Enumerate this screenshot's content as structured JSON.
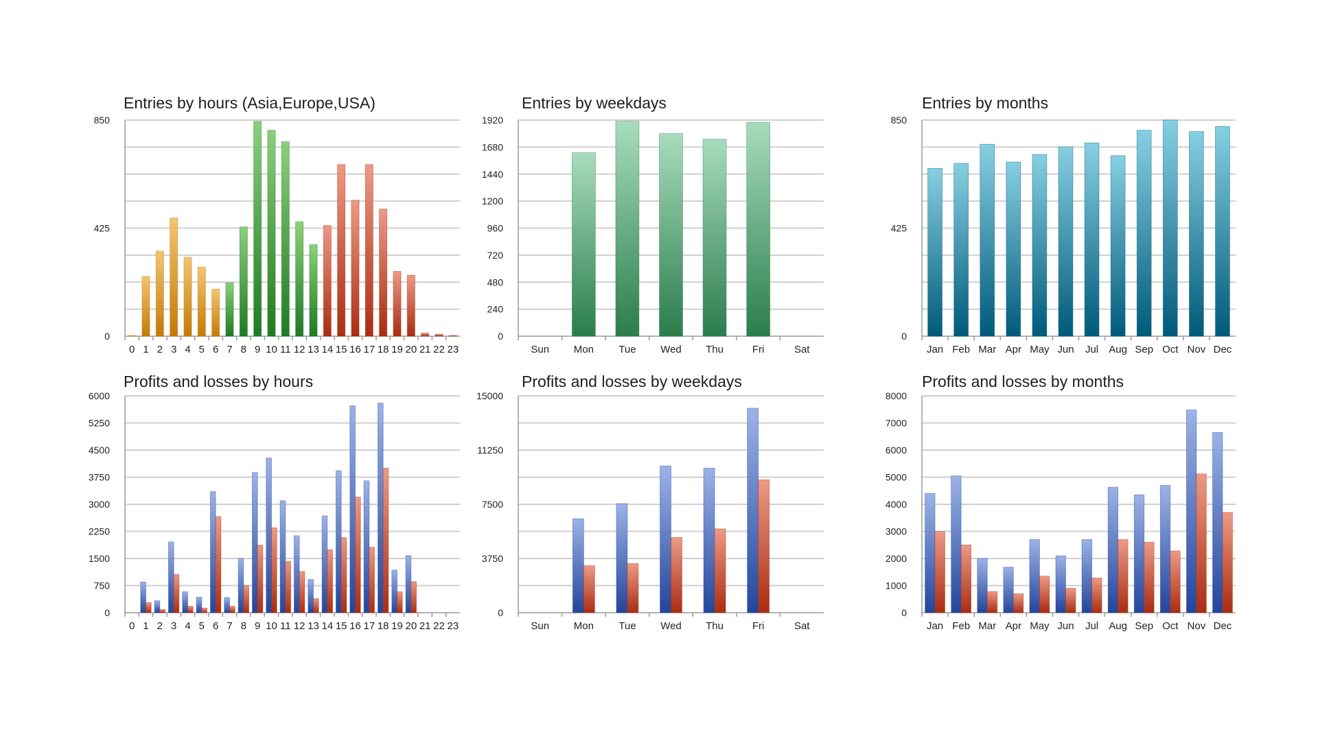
{
  "chart_data": [
    {
      "id": "entries-hours",
      "type": "bar",
      "title": "Entries by hours (Asia,Europe,USA)",
      "categories": [
        "0",
        "1",
        "2",
        "3",
        "4",
        "5",
        "6",
        "7",
        "8",
        "9",
        "10",
        "11",
        "12",
        "13",
        "14",
        "15",
        "16",
        "17",
        "18",
        "19",
        "20",
        "21",
        "22",
        "23"
      ],
      "values": [
        3,
        235,
        335,
        465,
        310,
        272,
        185,
        210,
        430,
        845,
        810,
        765,
        450,
        360,
        435,
        675,
        535,
        675,
        500,
        255,
        240,
        12,
        8,
        3
      ],
      "ylim": [
        0,
        850
      ],
      "yticks": [
        0,
        425,
        850
      ],
      "gridlines": 8,
      "color_groups": [
        "orange",
        "orange",
        "orange",
        "orange",
        "orange",
        "orange",
        "orange",
        "green",
        "green",
        "green",
        "green",
        "green",
        "green",
        "green",
        "red",
        "red",
        "red",
        "red",
        "red",
        "red",
        "red",
        "red",
        "red",
        "red"
      ]
    },
    {
      "id": "entries-weekdays",
      "type": "bar",
      "title": "Entries by weekdays",
      "categories": [
        "Sun",
        "Mon",
        "Tue",
        "Wed",
        "Thu",
        "Fri",
        "Sat"
      ],
      "values": [
        0,
        1630,
        1910,
        1800,
        1750,
        1900,
        0
      ],
      "ylim": [
        0,
        1920
      ],
      "yticks": [
        0,
        240,
        480,
        720,
        960,
        1200,
        1440,
        1680,
        1920
      ],
      "gridlines": 8,
      "color_groups": [
        "mint",
        "mint",
        "mint",
        "mint",
        "mint",
        "mint",
        "mint"
      ]
    },
    {
      "id": "entries-months",
      "type": "bar",
      "title": "Entries by months",
      "categories": [
        "Jan",
        "Feb",
        "Mar",
        "Apr",
        "May",
        "Jun",
        "Jul",
        "Aug",
        "Sep",
        "Oct",
        "Nov",
        "Dec"
      ],
      "values": [
        660,
        680,
        755,
        685,
        715,
        745,
        760,
        710,
        810,
        850,
        805,
        825
      ],
      "ylim": [
        0,
        850
      ],
      "yticks": [
        0,
        425,
        850
      ],
      "gridlines": 8,
      "color_groups": [
        "teal",
        "teal",
        "teal",
        "teal",
        "teal",
        "teal",
        "teal",
        "teal",
        "teal",
        "teal",
        "teal",
        "teal"
      ]
    },
    {
      "id": "pl-hours",
      "type": "bar",
      "title": "Profits and losses by hours",
      "categories": [
        "0",
        "1",
        "2",
        "3",
        "4",
        "5",
        "6",
        "7",
        "8",
        "9",
        "10",
        "11",
        "12",
        "13",
        "14",
        "15",
        "16",
        "17",
        "18",
        "19",
        "20",
        "21",
        "22",
        "23"
      ],
      "series": [
        {
          "name": "Profits",
          "color": "blue",
          "values": [
            0,
            850,
            330,
            1960,
            580,
            430,
            3350,
            420,
            1500,
            3880,
            4280,
            3100,
            2130,
            920,
            2680,
            3930,
            5730,
            3650,
            5800,
            1180,
            1580,
            0,
            0,
            0
          ]
        },
        {
          "name": "Losses",
          "color": "red",
          "values": [
            0,
            280,
            90,
            1060,
            180,
            130,
            2660,
            180,
            750,
            1870,
            2350,
            1420,
            1140,
            390,
            1740,
            2080,
            3200,
            1810,
            4000,
            580,
            860,
            0,
            0,
            0
          ]
        }
      ],
      "ylim": [
        0,
        6000
      ],
      "yticks": [
        0,
        750,
        1500,
        2250,
        3000,
        3750,
        4500,
        5250,
        6000
      ],
      "gridlines": 8
    },
    {
      "id": "pl-weekdays",
      "type": "bar",
      "title": "Profits and losses by weekdays",
      "categories": [
        "Sun",
        "Mon",
        "Tue",
        "Wed",
        "Thu",
        "Fri",
        "Sat"
      ],
      "series": [
        {
          "name": "Profits",
          "color": "blue",
          "values": [
            0,
            6500,
            7550,
            10150,
            10000,
            14150,
            0
          ]
        },
        {
          "name": "Losses",
          "color": "red",
          "values": [
            0,
            3250,
            3400,
            5200,
            5800,
            9200,
            0
          ]
        }
      ],
      "ylim": [
        0,
        15000
      ],
      "yticks": [
        0,
        3750,
        7500,
        11250,
        15000
      ],
      "gridlines": 8
    },
    {
      "id": "pl-months",
      "type": "bar",
      "title": "Profits and losses by months",
      "categories": [
        "Jan",
        "Feb",
        "Mar",
        "Apr",
        "May",
        "Jun",
        "Jul",
        "Aug",
        "Sep",
        "Oct",
        "Nov",
        "Dec"
      ],
      "series": [
        {
          "name": "Profits",
          "color": "blue",
          "values": [
            4400,
            5050,
            2000,
            1680,
            2700,
            2100,
            2700,
            4630,
            4350,
            4700,
            7480,
            6650
          ]
        },
        {
          "name": "Losses",
          "color": "red",
          "values": [
            3000,
            2500,
            780,
            700,
            1350,
            900,
            1280,
            2700,
            2600,
            2280,
            5120,
            3700
          ]
        }
      ],
      "ylim": [
        0,
        8000
      ],
      "yticks": [
        0,
        1000,
        2000,
        3000,
        4000,
        5000,
        6000,
        7000,
        8000
      ],
      "gridlines": 8
    }
  ],
  "colors": {
    "orange": [
      "#f2c572",
      "#c47a05"
    ],
    "green": [
      "#8ccf7c",
      "#1f7a22"
    ],
    "red": [
      "#ec9a86",
      "#a92d12"
    ],
    "mint": [
      "#a8dcbd",
      "#2b7d4c"
    ],
    "teal": [
      "#87cfe2",
      "#005a7a"
    ],
    "blue": [
      "#9cb3e6",
      "#23459c"
    ],
    "grid": "#cfcfcf",
    "axis": "#9a9a9a"
  }
}
